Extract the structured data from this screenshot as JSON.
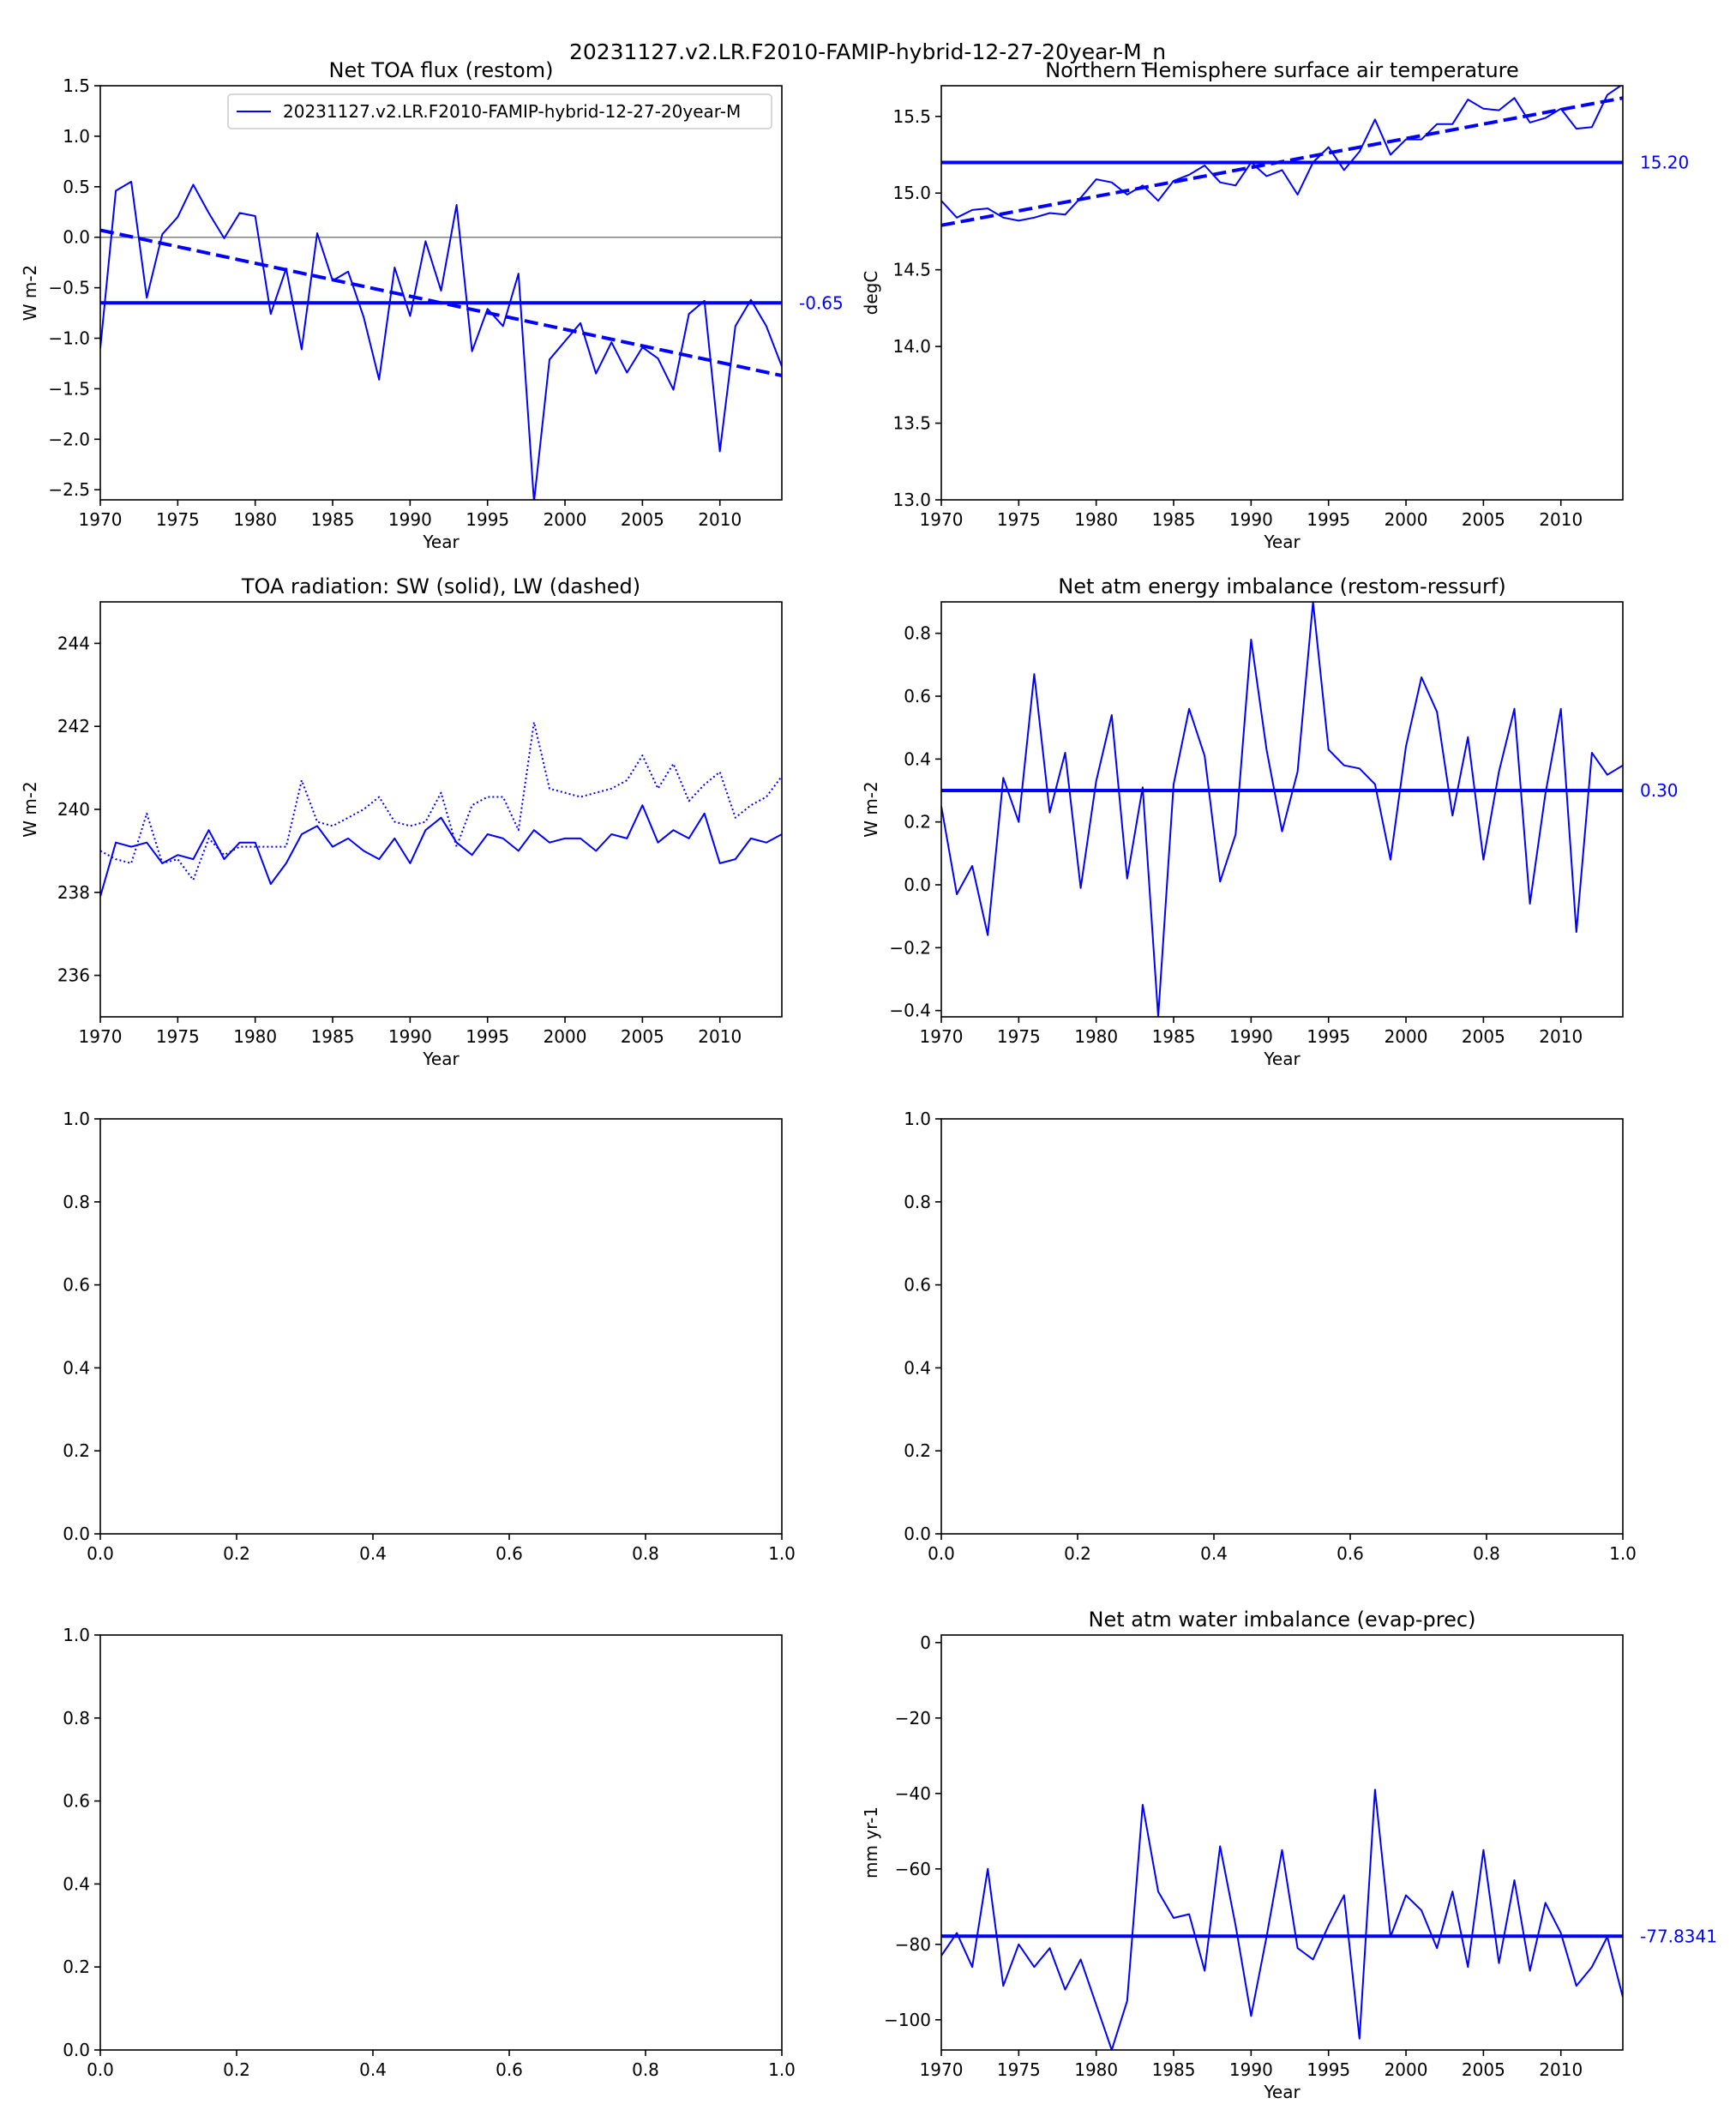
{
  "figure_title": "20231127.v2.LR.F2010-FAMIP-hybrid-12-27-20year-M_n",
  "colors": {
    "series": "#0000ff",
    "axis": "#000000",
    "zero": "#808080",
    "background": "#ffffff"
  },
  "chart_data": [
    {
      "id": "restom",
      "type": "line",
      "title": "Net TOA flux (restom)",
      "xlabel": "Year",
      "ylabel": "W m-2",
      "xlim": [
        1970,
        2014
      ],
      "ylim": [
        -2.6,
        1.5
      ],
      "xticks": [
        1970,
        1975,
        1980,
        1985,
        1990,
        1995,
        2000,
        2005,
        2010
      ],
      "yticks": [
        -2.5,
        -2.0,
        -1.5,
        -1.0,
        -0.5,
        0.0,
        0.5,
        1.0,
        1.5
      ],
      "ytick_decimals": 1,
      "legend": {
        "label": "20231127.v2.LR.F2010-FAMIP-hybrid-12-27-20year-M",
        "position": "top-right"
      },
      "zero_line": 0,
      "mean": -0.65,
      "mean_label": "-0.65",
      "trend": [
        [
          1970,
          0.07
        ],
        [
          2014,
          -1.37
        ]
      ],
      "x": [
        1970,
        1971,
        1972,
        1973,
        1974,
        1975,
        1976,
        1977,
        1978,
        1979,
        1980,
        1981,
        1982,
        1983,
        1984,
        1985,
        1986,
        1987,
        1988,
        1989,
        1990,
        1991,
        1992,
        1993,
        1994,
        1995,
        1996,
        1997,
        1998,
        1999,
        2000,
        2001,
        2002,
        2003,
        2004,
        2005,
        2006,
        2007,
        2008,
        2009,
        2010,
        2011,
        2012,
        2013,
        2014
      ],
      "series": [
        {
          "name": "20231127.v2.LR.F2010-FAMIP-hybrid-12-27-20year-M",
          "style": "solid",
          "values": [
            -1.1,
            0.46,
            0.55,
            -0.6,
            0.03,
            0.2,
            0.52,
            0.24,
            -0.01,
            0.24,
            0.21,
            -0.76,
            -0.31,
            -1.11,
            0.04,
            -0.43,
            -0.34,
            -0.79,
            -1.41,
            -0.3,
            -0.78,
            -0.04,
            -0.53,
            0.32,
            -1.13,
            -0.71,
            -0.88,
            -0.36,
            -2.62,
            -1.21,
            -1.03,
            -0.85,
            -1.35,
            -1.04,
            -1.34,
            -1.09,
            -1.2,
            -1.51,
            -0.76,
            -0.63,
            -2.12,
            -0.88,
            -0.62,
            -0.88,
            -1.28
          ]
        }
      ]
    },
    {
      "id": "tas_nh",
      "type": "line",
      "title": "Northern Hemisphere surface air temperature",
      "xlabel": "Year",
      "ylabel": "degC",
      "xlim": [
        1970,
        2014
      ],
      "ylim": [
        13.0,
        15.7
      ],
      "xticks": [
        1970,
        1975,
        1980,
        1985,
        1990,
        1995,
        2000,
        2005,
        2010
      ],
      "yticks": [
        13.0,
        13.5,
        14.0,
        14.5,
        15.0,
        15.5
      ],
      "ytick_decimals": 1,
      "mean": 15.2,
      "mean_label": "15.20",
      "trend": [
        [
          1970,
          14.79
        ],
        [
          2014,
          15.62
        ]
      ],
      "x": [
        1970,
        1971,
        1972,
        1973,
        1974,
        1975,
        1976,
        1977,
        1978,
        1979,
        1980,
        1981,
        1982,
        1983,
        1984,
        1985,
        1986,
        1987,
        1988,
        1989,
        1990,
        1991,
        1992,
        1993,
        1994,
        1995,
        1996,
        1997,
        1998,
        1999,
        2000,
        2001,
        2002,
        2003,
        2004,
        2005,
        2006,
        2007,
        2008,
        2009,
        2010,
        2011,
        2012,
        2013,
        2014
      ],
      "series": [
        {
          "style": "solid",
          "values": [
            14.95,
            14.84,
            14.89,
            14.9,
            14.84,
            14.82,
            14.84,
            14.87,
            14.86,
            14.97,
            15.09,
            15.07,
            14.99,
            15.05,
            14.95,
            15.08,
            15.12,
            15.18,
            15.07,
            15.05,
            15.2,
            15.11,
            15.15,
            14.99,
            15.2,
            15.3,
            15.15,
            15.27,
            15.48,
            15.25,
            15.35,
            15.35,
            15.45,
            15.45,
            15.61,
            15.55,
            15.54,
            15.62,
            15.46,
            15.49,
            15.55,
            15.42,
            15.43,
            15.64,
            15.71
          ]
        }
      ]
    },
    {
      "id": "toa_rad",
      "type": "line",
      "title": "TOA radiation: SW (solid), LW (dashed)",
      "xlabel": "Year",
      "ylabel": "W m-2",
      "xlim": [
        1970,
        2014
      ],
      "ylim": [
        235.0,
        245.0
      ],
      "xticks": [
        1970,
        1975,
        1980,
        1985,
        1990,
        1995,
        2000,
        2005,
        2010
      ],
      "yticks": [
        236,
        238,
        240,
        242,
        244
      ],
      "ytick_decimals": 0,
      "x": [
        1970,
        1971,
        1972,
        1973,
        1974,
        1975,
        1976,
        1977,
        1978,
        1979,
        1980,
        1981,
        1982,
        1983,
        1984,
        1985,
        1986,
        1987,
        1988,
        1989,
        1990,
        1991,
        1992,
        1993,
        1994,
        1995,
        1996,
        1997,
        1998,
        1999,
        2000,
        2001,
        2002,
        2003,
        2004,
        2005,
        2006,
        2007,
        2008,
        2009,
        2010,
        2011,
        2012,
        2013,
        2014
      ],
      "series": [
        {
          "style": "solid",
          "values": [
            237.9,
            239.2,
            239.1,
            239.2,
            238.7,
            238.9,
            238.8,
            239.5,
            238.8,
            239.2,
            239.2,
            238.2,
            238.7,
            239.4,
            239.6,
            239.1,
            239.3,
            239.0,
            238.8,
            239.3,
            238.7,
            239.5,
            239.8,
            239.2,
            238.9,
            239.4,
            239.3,
            239.0,
            239.5,
            239.2,
            239.3,
            239.3,
            239.0,
            239.4,
            239.3,
            240.1,
            239.2,
            239.5,
            239.3,
            239.9,
            238.7,
            238.8,
            239.3,
            239.2,
            239.4
          ]
        },
        {
          "style": "dotted",
          "values": [
            239.0,
            238.8,
            238.7,
            239.9,
            238.7,
            238.8,
            238.3,
            239.3,
            238.9,
            239.1,
            239.1,
            239.1,
            239.1,
            240.7,
            239.7,
            239.6,
            239.8,
            240.0,
            240.3,
            239.7,
            239.6,
            239.7,
            240.4,
            239.1,
            240.1,
            240.3,
            240.3,
            239.5,
            242.1,
            240.5,
            240.4,
            240.3,
            240.4,
            240.5,
            240.7,
            241.3,
            240.5,
            241.1,
            240.2,
            240.6,
            240.9,
            239.8,
            240.1,
            240.3,
            240.8
          ]
        }
      ]
    },
    {
      "id": "atm_energy",
      "type": "line",
      "title": "Net atm energy imbalance (restom-ressurf)",
      "xlabel": "Year",
      "ylabel": "W m-2",
      "xlim": [
        1970,
        2014
      ],
      "ylim": [
        -0.42,
        0.9
      ],
      "xticks": [
        1970,
        1975,
        1980,
        1985,
        1990,
        1995,
        2000,
        2005,
        2010
      ],
      "yticks": [
        -0.4,
        -0.2,
        0.0,
        0.2,
        0.4,
        0.6,
        0.8
      ],
      "ytick_decimals": 1,
      "mean": 0.3,
      "mean_label": "0.30",
      "x": [
        1970,
        1971,
        1972,
        1973,
        1974,
        1975,
        1976,
        1977,
        1978,
        1979,
        1980,
        1981,
        1982,
        1983,
        1984,
        1985,
        1986,
        1987,
        1988,
        1989,
        1990,
        1991,
        1992,
        1993,
        1994,
        1995,
        1996,
        1997,
        1998,
        1999,
        2000,
        2001,
        2002,
        2003,
        2004,
        2005,
        2006,
        2007,
        2008,
        2009,
        2010,
        2011,
        2012,
        2013,
        2014
      ],
      "series": [
        {
          "style": "solid",
          "values": [
            0.25,
            -0.03,
            0.06,
            -0.16,
            0.34,
            0.2,
            0.67,
            0.23,
            0.42,
            -0.01,
            0.33,
            0.54,
            0.02,
            0.31,
            -0.42,
            0.32,
            0.56,
            0.41,
            0.01,
            0.16,
            0.78,
            0.43,
            0.17,
            0.36,
            0.9,
            0.43,
            0.38,
            0.37,
            0.32,
            0.08,
            0.44,
            0.66,
            0.55,
            0.22,
            0.47,
            0.08,
            0.36,
            0.56,
            -0.06,
            0.29,
            0.56,
            -0.15,
            0.42,
            0.35,
            0.38
          ]
        }
      ]
    },
    {
      "id": "empty_left",
      "type": "line",
      "title": "",
      "xlabel": "",
      "ylabel": "",
      "xlim": [
        0,
        1
      ],
      "ylim": [
        0,
        1
      ],
      "xticks": [
        0.0,
        0.2,
        0.4,
        0.6,
        0.8,
        1.0
      ],
      "yticks": [
        0.0,
        0.2,
        0.4,
        0.6,
        0.8,
        1.0
      ],
      "ytick_decimals": 1,
      "xtick_decimals": 1,
      "series": []
    },
    {
      "id": "empty_right",
      "type": "line",
      "title": "",
      "xlabel": "",
      "ylabel": "",
      "xlim": [
        0,
        1
      ],
      "ylim": [
        0,
        1
      ],
      "xticks": [
        0.0,
        0.2,
        0.4,
        0.6,
        0.8,
        1.0
      ],
      "yticks": [
        0.0,
        0.2,
        0.4,
        0.6,
        0.8,
        1.0
      ],
      "ytick_decimals": 1,
      "xtick_decimals": 1,
      "series": []
    },
    {
      "id": "empty_left_bottom",
      "type": "line",
      "title": "",
      "xlabel": "",
      "ylabel": "",
      "xlim": [
        0,
        1
      ],
      "ylim": [
        0,
        1
      ],
      "xticks": [
        0.0,
        0.2,
        0.4,
        0.6,
        0.8,
        1.0
      ],
      "yticks": [
        0.0,
        0.2,
        0.4,
        0.6,
        0.8,
        1.0
      ],
      "ytick_decimals": 1,
      "xtick_decimals": 1,
      "series": []
    },
    {
      "id": "atm_water",
      "type": "line",
      "title": "Net atm water imbalance (evap-prec)",
      "xlabel": "Year",
      "ylabel": "mm yr-1",
      "xlim": [
        1970,
        2014
      ],
      "ylim": [
        -108,
        2
      ],
      "xticks": [
        1970,
        1975,
        1980,
        1985,
        1990,
        1995,
        2000,
        2005,
        2010
      ],
      "yticks": [
        -100,
        -80,
        -60,
        -40,
        -20,
        0
      ],
      "ytick_decimals": 0,
      "mean": -77.8341,
      "mean_label": "-77.8341",
      "x": [
        1970,
        1971,
        1972,
        1973,
        1974,
        1975,
        1976,
        1977,
        1978,
        1979,
        1980,
        1981,
        1982,
        1983,
        1984,
        1985,
        1986,
        1987,
        1988,
        1989,
        1990,
        1991,
        1992,
        1993,
        1994,
        1995,
        1996,
        1997,
        1998,
        1999,
        2000,
        2001,
        2002,
        2003,
        2004,
        2005,
        2006,
        2007,
        2008,
        2009,
        2010,
        2011,
        2012,
        2013,
        2014
      ],
      "series": [
        {
          "style": "solid",
          "values": [
            -83,
            -77,
            -86,
            -60,
            -91,
            -80,
            -86,
            -81,
            -92,
            -84,
            -96,
            -108,
            -95,
            -43,
            -66,
            -73,
            -72,
            -87,
            -54,
            -75,
            -99,
            -78,
            -55,
            -81,
            -84,
            -75,
            -67,
            -105,
            -39,
            -78,
            -67,
            -71,
            -81,
            -66,
            -86,
            -55,
            -85,
            -63,
            -87,
            -69,
            -77,
            -91,
            -86,
            -78,
            -94
          ]
        }
      ]
    }
  ]
}
